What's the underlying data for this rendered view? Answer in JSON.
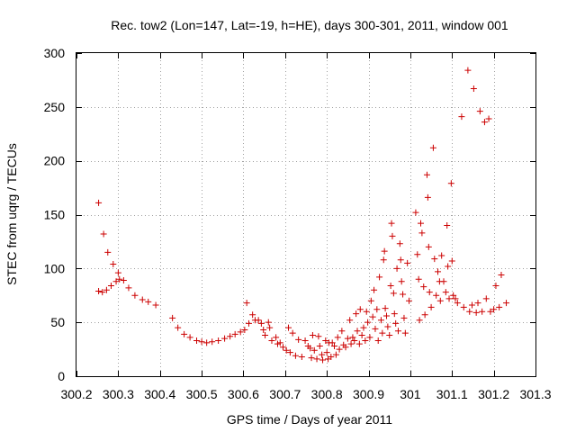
{
  "chart_data": {
    "type": "scatter",
    "title": "Rec. tow2 (Lon=147, Lat=-19, h=HE), days 300-301, 2011, window 001",
    "xlabel": "GPS time / Days of year 2011",
    "ylabel": "STEC from uqrg / TECUs",
    "xlim": [
      300.2,
      301.3
    ],
    "ylim": [
      0,
      300
    ],
    "xticks": [
      300.2,
      300.3,
      300.4,
      300.5,
      300.6,
      300.7,
      300.8,
      300.9,
      301.0,
      301.1,
      301.2,
      301.3
    ],
    "xtick_labels": [
      "300.2",
      "300.3",
      "300.4",
      "300.5",
      "300.6",
      "300.7",
      "300.8",
      "300.9",
      "301",
      "301.1",
      "301.2",
      "301.3"
    ],
    "yticks": [
      0,
      50,
      100,
      150,
      200,
      250,
      300
    ],
    "ytick_labels": [
      "0",
      "50",
      "100",
      "150",
      "200",
      "250",
      "300"
    ],
    "grid": true,
    "marker": "+",
    "color": "#cc0000",
    "series": [
      {
        "name": "STEC",
        "points": [
          [
            300.253,
            161
          ],
          [
            300.253,
            79
          ],
          [
            300.262,
            78
          ],
          [
            300.265,
            132
          ],
          [
            300.272,
            80
          ],
          [
            300.275,
            115
          ],
          [
            300.283,
            84
          ],
          [
            300.288,
            104
          ],
          [
            300.295,
            88
          ],
          [
            300.3,
            96
          ],
          [
            300.303,
            90
          ],
          [
            300.313,
            89
          ],
          [
            300.325,
            82
          ],
          [
            300.34,
            75
          ],
          [
            300.358,
            71
          ],
          [
            300.372,
            69
          ],
          [
            300.39,
            66
          ],
          [
            300.43,
            54
          ],
          [
            300.443,
            45
          ],
          [
            300.458,
            39
          ],
          [
            300.472,
            36
          ],
          [
            300.488,
            33
          ],
          [
            300.5,
            32
          ],
          [
            300.512,
            31
          ],
          [
            300.525,
            32
          ],
          [
            300.54,
            33
          ],
          [
            300.555,
            35
          ],
          [
            300.568,
            37
          ],
          [
            300.58,
            39
          ],
          [
            300.593,
            41
          ],
          [
            300.603,
            43
          ],
          [
            300.608,
            68
          ],
          [
            300.613,
            49
          ],
          [
            300.622,
            57
          ],
          [
            300.628,
            52
          ],
          [
            300.636,
            52
          ],
          [
            300.643,
            49
          ],
          [
            300.648,
            43
          ],
          [
            300.652,
            38
          ],
          [
            300.66,
            50
          ],
          [
            300.663,
            45
          ],
          [
            300.668,
            33
          ],
          [
            300.678,
            36
          ],
          [
            300.682,
            30
          ],
          [
            300.688,
            31
          ],
          [
            300.695,
            27
          ],
          [
            300.703,
            24
          ],
          [
            300.708,
            45
          ],
          [
            300.712,
            22
          ],
          [
            300.718,
            40
          ],
          [
            300.725,
            19
          ],
          [
            300.732,
            34
          ],
          [
            300.74,
            18
          ],
          [
            300.748,
            33
          ],
          [
            300.755,
            28
          ],
          [
            300.76,
            26
          ],
          [
            300.763,
            17
          ],
          [
            300.766,
            38
          ],
          [
            300.77,
            24
          ],
          [
            300.776,
            16
          ],
          [
            300.78,
            37
          ],
          [
            300.783,
            28
          ],
          [
            300.788,
            20
          ],
          [
            300.79,
            15
          ],
          [
            300.797,
            33
          ],
          [
            300.8,
            22
          ],
          [
            300.803,
            16
          ],
          [
            300.805,
            31
          ],
          [
            300.81,
            18
          ],
          [
            300.813,
            31
          ],
          [
            300.818,
            28
          ],
          [
            300.822,
            20
          ],
          [
            300.826,
            36
          ],
          [
            300.83,
            25
          ],
          [
            300.836,
            42
          ],
          [
            300.84,
            29
          ],
          [
            300.845,
            27
          ],
          [
            300.85,
            35
          ],
          [
            300.855,
            52
          ],
          [
            300.858,
            30
          ],
          [
            300.862,
            36
          ],
          [
            300.866,
            33
          ],
          [
            300.87,
            58
          ],
          [
            300.873,
            42
          ],
          [
            300.878,
            30
          ],
          [
            300.88,
            62
          ],
          [
            300.884,
            38
          ],
          [
            300.888,
            45
          ],
          [
            300.892,
            33
          ],
          [
            300.895,
            60
          ],
          [
            300.898,
            50
          ],
          [
            300.903,
            36
          ],
          [
            300.906,
            70
          ],
          [
            300.91,
            55
          ],
          [
            300.913,
            80
          ],
          [
            300.916,
            44
          ],
          [
            300.92,
            62
          ],
          [
            300.923,
            33
          ],
          [
            300.926,
            92
          ],
          [
            300.93,
            52
          ],
          [
            300.933,
            40
          ],
          [
            300.936,
            108
          ],
          [
            300.938,
            116
          ],
          [
            300.94,
            63
          ],
          [
            300.943,
            56
          ],
          [
            300.946,
            46
          ],
          [
            300.95,
            38
          ],
          [
            300.953,
            84
          ],
          [
            300.955,
            142
          ],
          [
            300.957,
            130
          ],
          [
            300.96,
            77
          ],
          [
            300.962,
            58
          ],
          [
            300.965,
            49
          ],
          [
            300.968,
            100
          ],
          [
            300.971,
            42
          ],
          [
            300.975,
            123
          ],
          [
            300.977,
            108
          ],
          [
            300.979,
            88
          ],
          [
            300.982,
            76
          ],
          [
            300.985,
            54
          ],
          [
            300.988,
            40
          ],
          [
            300.993,
            105
          ],
          [
            300.997,
            70
          ],
          [
            301.013,
            152
          ],
          [
            301.017,
            113
          ],
          [
            301.02,
            90
          ],
          [
            301.022,
            52
          ],
          [
            301.025,
            142
          ],
          [
            301.028,
            133
          ],
          [
            301.032,
            83
          ],
          [
            301.035,
            57
          ],
          [
            301.04,
            187
          ],
          [
            301.042,
            166
          ],
          [
            301.044,
            120
          ],
          [
            301.046,
            78
          ],
          [
            301.05,
            64
          ],
          [
            301.055,
            212
          ],
          [
            301.058,
            109
          ],
          [
            301.062,
            75
          ],
          [
            301.066,
            97
          ],
          [
            301.07,
            88
          ],
          [
            301.072,
            70
          ],
          [
            301.075,
            112
          ],
          [
            301.08,
            88
          ],
          [
            301.085,
            78
          ],
          [
            301.088,
            140
          ],
          [
            301.09,
            102
          ],
          [
            301.093,
            72
          ],
          [
            301.098,
            179
          ],
          [
            301.1,
            107
          ],
          [
            301.103,
            75
          ],
          [
            301.108,
            72
          ],
          [
            301.113,
            68
          ],
          [
            301.123,
            241
          ],
          [
            301.128,
            64
          ],
          [
            301.138,
            284
          ],
          [
            301.142,
            60
          ],
          [
            301.148,
            66
          ],
          [
            301.152,
            267
          ],
          [
            301.158,
            59
          ],
          [
            301.162,
            68
          ],
          [
            301.167,
            246
          ],
          [
            301.172,
            60
          ],
          [
            301.178,
            236
          ],
          [
            301.182,
            72
          ],
          [
            301.188,
            239
          ],
          [
            301.192,
            60
          ],
          [
            301.2,
            62
          ],
          [
            301.205,
            84
          ],
          [
            301.213,
            64
          ],
          [
            301.218,
            94
          ],
          [
            301.23,
            68
          ]
        ]
      }
    ]
  }
}
